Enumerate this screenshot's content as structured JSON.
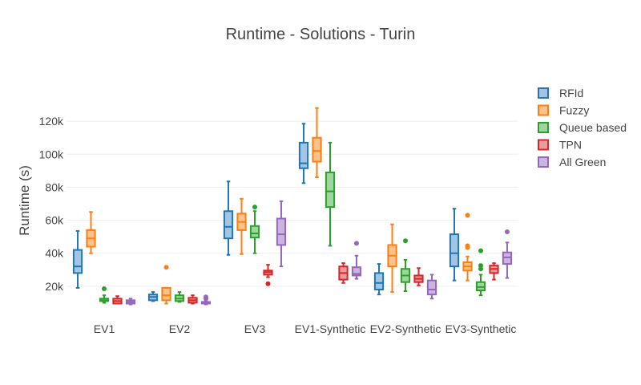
{
  "chart_data": {
    "type": "box",
    "title": "Runtime - Solutions - Turin",
    "xlabel": "",
    "ylabel": "Runtime (s)",
    "ylim": [
      0,
      140000
    ],
    "yticks": [
      20000,
      40000,
      60000,
      80000,
      100000,
      120000
    ],
    "ytick_labels": [
      "20k",
      "40k",
      "60k",
      "80k",
      "100k",
      "120k"
    ],
    "grid": true,
    "legend_position": "right",
    "categories": [
      "EV1",
      "EV2",
      "EV3",
      "EV1-Synthetic",
      "EV2-Synthetic",
      "EV3-Synthetic"
    ],
    "series": [
      {
        "name": "RFId",
        "color": "#1f77b4",
        "fill": "#a3c4e2",
        "boxes": [
          {
            "min": 19000,
            "q1": 28000,
            "median": 32000,
            "q3": 42000,
            "max": 53500,
            "outliers": []
          },
          {
            "min": 11000,
            "q1": 11500,
            "median": 13500,
            "q3": 15000,
            "max": 16500,
            "outliers": []
          },
          {
            "min": 39000,
            "q1": 49000,
            "median": 56000,
            "q3": 65500,
            "max": 83500,
            "outliers": []
          },
          {
            "min": 82500,
            "q1": 91500,
            "median": 94500,
            "q3": 107000,
            "max": 118500,
            "outliers": []
          },
          {
            "min": 15000,
            "q1": 18000,
            "median": 22000,
            "q3": 28000,
            "max": 33500,
            "outliers": []
          },
          {
            "min": 23500,
            "q1": 32000,
            "median": 40000,
            "q3": 51500,
            "max": 67000,
            "outliers": []
          }
        ]
      },
      {
        "name": "Fuzzy",
        "color": "#ff7f0e",
        "fill": "#ffc28d",
        "boxes": [
          {
            "min": 40000,
            "q1": 44000,
            "median": 49000,
            "q3": 54000,
            "max": 65000,
            "outliers": []
          },
          {
            "min": 9500,
            "q1": 11500,
            "median": 14500,
            "q3": 19000,
            "max": 19000,
            "outliers": [
              31500
            ]
          },
          {
            "min": 39500,
            "q1": 54000,
            "median": 59000,
            "q3": 64000,
            "max": 73000,
            "outliers": []
          },
          {
            "min": 86000,
            "q1": 95500,
            "median": 102000,
            "q3": 110000,
            "max": 128000,
            "outliers": []
          },
          {
            "min": 16500,
            "q1": 32000,
            "median": 38500,
            "q3": 45000,
            "max": 57500,
            "outliers": []
          },
          {
            "min": 23500,
            "q1": 29500,
            "median": 32000,
            "q3": 34500,
            "max": 38000,
            "outliers": [
              43500,
              44500,
              63000
            ]
          }
        ]
      },
      {
        "name": "Queue based",
        "color": "#2ca02c",
        "fill": "#9ed69e",
        "boxes": [
          {
            "min": 10000,
            "q1": 11000,
            "median": 11500,
            "q3": 12500,
            "max": 14500,
            "outliers": [
              18500
            ]
          },
          {
            "min": 10500,
            "q1": 11000,
            "median": 12500,
            "q3": 14500,
            "max": 16500,
            "outliers": []
          },
          {
            "min": 40000,
            "q1": 49500,
            "median": 52000,
            "q3": 56500,
            "max": 65500,
            "outliers": [
              68000
            ]
          },
          {
            "min": 44500,
            "q1": 68000,
            "median": 77500,
            "q3": 89000,
            "max": 107000,
            "outliers": []
          },
          {
            "min": 17000,
            "q1": 22500,
            "median": 26500,
            "q3": 30500,
            "max": 36000,
            "outliers": [
              47500
            ]
          },
          {
            "min": 14500,
            "q1": 17500,
            "median": 19500,
            "q3": 22500,
            "max": 27000,
            "outliers": [
              30500,
              32500,
              41500
            ]
          }
        ]
      },
      {
        "name": "TPN",
        "color": "#d62728",
        "fill": "#ec9a9b",
        "boxes": [
          {
            "min": 9500,
            "q1": 9500,
            "median": 11000,
            "q3": 12500,
            "max": 14000,
            "outliers": []
          },
          {
            "min": 9500,
            "q1": 10000,
            "median": 11500,
            "q3": 13000,
            "max": 14500,
            "outliers": []
          },
          {
            "min": 25500,
            "q1": 27000,
            "median": 28500,
            "q3": 29500,
            "max": 33000,
            "outliers": [
              21500
            ]
          },
          {
            "min": 22000,
            "q1": 24000,
            "median": 28000,
            "q3": 32000,
            "max": 34000,
            "outliers": []
          },
          {
            "min": 20500,
            "q1": 22500,
            "median": 24500,
            "q3": 26500,
            "max": 31000,
            "outliers": []
          },
          {
            "min": 24000,
            "q1": 28000,
            "median": 30500,
            "q3": 32500,
            "max": 34000,
            "outliers": []
          }
        ]
      },
      {
        "name": "All Green",
        "color": "#9467bd",
        "fill": "#cbb5e0",
        "boxes": [
          {
            "min": 9000,
            "q1": 9500,
            "median": 10500,
            "q3": 11500,
            "max": 12500,
            "outliers": []
          },
          {
            "min": 9000,
            "q1": 9500,
            "median": 10000,
            "q3": 10500,
            "max": 11000,
            "outliers": [
              12500,
              13500
            ]
          },
          {
            "min": 32000,
            "q1": 45000,
            "median": 51500,
            "q3": 61000,
            "max": 71500,
            "outliers": []
          },
          {
            "min": 24500,
            "q1": 26500,
            "median": 27500,
            "q3": 31500,
            "max": 38500,
            "outliers": [
              46000
            ]
          },
          {
            "min": 12500,
            "q1": 15000,
            "median": 18000,
            "q3": 23500,
            "max": 27000,
            "outliers": []
          },
          {
            "min": 25000,
            "q1": 33500,
            "median": 37500,
            "q3": 40500,
            "max": 46500,
            "outliers": [
              53000
            ]
          }
        ]
      }
    ]
  }
}
